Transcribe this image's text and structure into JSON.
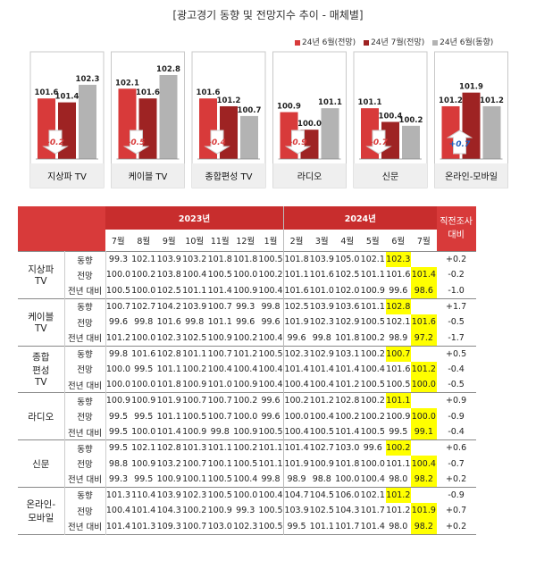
{
  "title": "[광고경기 동향 및 전망지수 추이 - 매체별]",
  "colors": {
    "red": "#d83a3a",
    "darkred": "#9e2323",
    "gray": "#b3b3b3",
    "highlight": "#ffff00",
    "header": "#d83a3a"
  },
  "chart_data": {
    "type": "bar",
    "series": [
      {
        "name": "24년 6월(전망)",
        "values": [
          101.6,
          102.1,
          101.6,
          100.9,
          101.1,
          101.2
        ]
      },
      {
        "name": "24년 7월(전망)",
        "values": [
          101.4,
          101.6,
          101.2,
          100.0,
          100.4,
          101.9
        ]
      },
      {
        "name": "24년 6월(동향)",
        "values": [
          102.3,
          102.8,
          100.7,
          101.1,
          100.2,
          101.2
        ]
      }
    ],
    "categories": [
      "지상파 TV",
      "케이블 TV",
      "종합편성 TV",
      "라디오",
      "신문",
      "온라인-모바일"
    ],
    "annotations": [
      "-0.2",
      "-0.5",
      "-0.4",
      "-0.9",
      "-0.7",
      "+0.7"
    ],
    "annotation_direction": [
      "down",
      "down",
      "down",
      "down",
      "down",
      "up"
    ],
    "value_labels": [
      [
        "101.6",
        "101.4",
        "102.3"
      ],
      [
        "102.1",
        "101.6",
        "102.8"
      ],
      [
        "101.6",
        "101.2",
        "100.7"
      ],
      [
        "100.9",
        "100.0",
        "101.1"
      ],
      [
        "101.1",
        "100.4",
        "100.2"
      ],
      [
        "101.2",
        "101.9",
        "101.2"
      ]
    ],
    "legend_position": "top-right"
  },
  "table": {
    "year_2023": "2023년",
    "year_2024": "2024년",
    "last_header": "직전조사 대비",
    "months": [
      "7월",
      "8월",
      "9월",
      "10월",
      "11월",
      "12월",
      "1월",
      "2월",
      "3월",
      "4월",
      "5월",
      "6월",
      "7월"
    ],
    "media": [
      {
        "name": "지상파 TV",
        "lines": [
          "지상파",
          "TV"
        ],
        "rows": [
          {
            "label": "동향",
            "values": [
              "99.3",
              "102.1",
              "103.9",
              "103.2",
              "101.8",
              "101.8",
              "100.5",
              "101.8",
              "103.9",
              "105.0",
              "102.1",
              "102.3",
              ""
            ],
            "diff": "+0.2",
            "hl": [
              11
            ]
          },
          {
            "label": "전망",
            "values": [
              "100.0",
              "100.2",
              "103.8",
              "100.4",
              "100.5",
              "100.0",
              "100.2",
              "101.1",
              "101.6",
              "102.5",
              "101.1",
              "101.6",
              "101.4"
            ],
            "diff": "-0.2",
            "hl": [
              12
            ]
          },
          {
            "label": "전년 대비",
            "values": [
              "100.5",
              "100.0",
              "102.5",
              "101.1",
              "101.4",
              "100.9",
              "100.4",
              "101.6",
              "101.0",
              "102.0",
              "100.9",
              "99.6",
              "98.6"
            ],
            "diff": "-1.0",
            "hl": [
              12
            ]
          }
        ]
      },
      {
        "name": "케이블 TV",
        "lines": [
          "케이블",
          "TV"
        ],
        "rows": [
          {
            "label": "동향",
            "values": [
              "100.7",
              "102.7",
              "104.2",
              "103.9",
              "100.7",
              "99.3",
              "99.8",
              "102.5",
              "103.9",
              "103.6",
              "101.1",
              "102.8",
              ""
            ],
            "diff": "+1.7",
            "hl": [
              11
            ]
          },
          {
            "label": "전망",
            "values": [
              "99.6",
              "99.8",
              "101.6",
              "99.8",
              "101.1",
              "99.6",
              "99.6",
              "101.9",
              "102.3",
              "102.9",
              "100.5",
              "102.1",
              "101.6"
            ],
            "diff": "-0.5",
            "hl": [
              12
            ]
          },
          {
            "label": "전년 대비",
            "values": [
              "101.2",
              "100.0",
              "102.3",
              "102.5",
              "100.9",
              "100.2",
              "100.4",
              "99.6",
              "99.8",
              "101.8",
              "100.2",
              "98.9",
              "97.2"
            ],
            "diff": "-1.7",
            "hl": [
              12
            ]
          }
        ]
      },
      {
        "name": "종합 편성 TV",
        "lines": [
          "종합",
          "편성",
          "TV"
        ],
        "rows": [
          {
            "label": "동향",
            "values": [
              "99.8",
              "101.6",
              "102.8",
              "101.1",
              "100.7",
              "101.2",
              "100.5",
              "102.3",
              "102.9",
              "103.1",
              "100.2",
              "100.7",
              ""
            ],
            "diff": "+0.5",
            "hl": [
              11
            ]
          },
          {
            "label": "전망",
            "values": [
              "100.0",
              "99.5",
              "101.1",
              "100.2",
              "100.4",
              "100.4",
              "100.4",
              "101.4",
              "101.4",
              "101.4",
              "100.4",
              "101.6",
              "101.2"
            ],
            "diff": "-0.4",
            "hl": [
              12
            ]
          },
          {
            "label": "전년 대비",
            "values": [
              "100.0",
              "100.0",
              "101.8",
              "100.9",
              "101.0",
              "100.9",
              "100.4",
              "100.4",
              "100.4",
              "101.2",
              "100.5",
              "100.5",
              "100.0"
            ],
            "diff": "-0.5",
            "hl": [
              12
            ]
          }
        ]
      },
      {
        "name": "라디오",
        "lines": [
          "라디오"
        ],
        "rows": [
          {
            "label": "동향",
            "values": [
              "100.9",
              "100.9",
              "101.9",
              "100.7",
              "100.7",
              "100.2",
              "99.6",
              "100.2",
              "101.2",
              "102.8",
              "100.2",
              "101.1",
              ""
            ],
            "diff": "+0.9",
            "hl": [
              11
            ]
          },
          {
            "label": "전망",
            "values": [
              "99.5",
              "99.5",
              "101.1",
              "100.5",
              "100.7",
              "100.0",
              "99.6",
              "100.0",
              "100.4",
              "100.2",
              "100.2",
              "100.9",
              "100.0"
            ],
            "diff": "-0.9",
            "hl": [
              12
            ]
          },
          {
            "label": "전년 대비",
            "values": [
              "99.5",
              "100.0",
              "101.4",
              "100.9",
              "99.8",
              "100.9",
              "100.5",
              "100.4",
              "100.5",
              "101.4",
              "100.5",
              "99.5",
              "99.1"
            ],
            "diff": "-0.4",
            "hl": [
              12
            ]
          }
        ]
      },
      {
        "name": "신문",
        "lines": [
          "신문"
        ],
        "rows": [
          {
            "label": "동향",
            "values": [
              "99.5",
              "102.1",
              "102.8",
              "101.3",
              "101.1",
              "100.2",
              "101.1",
              "101.4",
              "102.7",
              "103.0",
              "99.6",
              "100.2",
              ""
            ],
            "diff": "+0.6",
            "hl": [
              11
            ]
          },
          {
            "label": "전망",
            "values": [
              "98.8",
              "100.9",
              "103.2",
              "100.7",
              "100.1",
              "100.5",
              "101.1",
              "101.9",
              "100.9",
              "101.8",
              "100.0",
              "101.1",
              "100.4"
            ],
            "diff": "-0.7",
            "hl": [
              12
            ]
          },
          {
            "label": "전년 대비",
            "values": [
              "99.3",
              "99.5",
              "100.9",
              "100.1",
              "100.5",
              "100.4",
              "99.8",
              "98.9",
              "98.8",
              "100.0",
              "100.4",
              "98.0",
              "98.2"
            ],
            "diff": "+0.2",
            "hl": [
              12
            ]
          }
        ]
      },
      {
        "name": "온라인-모바일",
        "lines": [
          "온라인-",
          "모바일"
        ],
        "rows": [
          {
            "label": "동향",
            "values": [
              "101.3",
              "110.4",
              "103.9",
              "102.3",
              "100.5",
              "100.0",
              "100.4",
              "104.7",
              "104.5",
              "106.0",
              "102.1",
              "101.2",
              ""
            ],
            "diff": "-0.9",
            "hl": [
              11
            ]
          },
          {
            "label": "전망",
            "values": [
              "100.4",
              "101.4",
              "104.3",
              "100.2",
              "100.9",
              "99.3",
              "100.5",
              "103.9",
              "102.5",
              "104.3",
              "101.7",
              "101.2",
              "101.9"
            ],
            "diff": "+0.7",
            "hl": [
              12
            ]
          },
          {
            "label": "전년 대비",
            "values": [
              "101.4",
              "101.3",
              "109.3",
              "100.7",
              "103.0",
              "102.3",
              "100.5",
              "99.5",
              "101.1",
              "101.7",
              "101.4",
              "98.0",
              "98.2"
            ],
            "diff": "+0.2",
            "hl": [
              12
            ]
          }
        ]
      }
    ]
  }
}
